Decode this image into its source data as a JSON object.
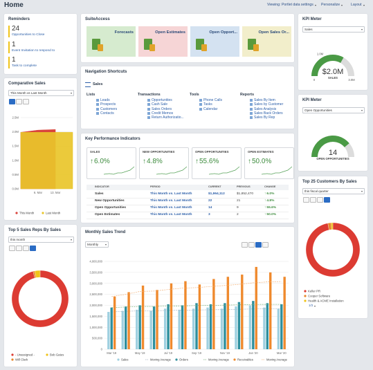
{
  "header": {
    "title": "Home",
    "links": [
      "Viewing: Portlet data settings",
      "Personalize",
      "Layout"
    ]
  },
  "reminders": {
    "title": "Reminders",
    "items": [
      {
        "count": 24,
        "label": "Opportunities to Close"
      },
      {
        "count": 1,
        "label": "Event Invitation to respond to"
      },
      {
        "count": 1,
        "label": "Task to complete"
      }
    ]
  },
  "comparative_sales": {
    "title": "Comparative Sales",
    "filter": "This Month vs Last Month",
    "chart_data": {
      "type": "area",
      "categories": [
        null,
        "6. Mar",
        "13. Mar",
        null
      ],
      "series": [
        {
          "name": "This Month",
          "color": "#d9453d",
          "values": [
            1.98,
            2.06,
            2.08,
            null
          ]
        },
        {
          "name": "Last Month",
          "color": "#e9c62a",
          "values": [
            1.98,
            1.98,
            1.98,
            1.98
          ]
        }
      ],
      "ylim": [
        0,
        2.5
      ],
      "yticks": [
        {
          "value": 0,
          "label": "0.0M"
        },
        {
          "value": 0.5,
          "label": "0.5M"
        },
        {
          "value": 1,
          "label": "1.0M"
        },
        {
          "value": 1.5,
          "label": "1.5M"
        },
        {
          "value": 2,
          "label": "2.0M"
        },
        {
          "value": 2.5,
          "label": "2.5M"
        }
      ],
      "grid": true
    }
  },
  "top_reps": {
    "title": "Top 5 Sales Reps By Sales",
    "filter": "this month",
    "chart_data": {
      "type": "donut",
      "categories": [
        "- Unassigned -",
        "Will Clark",
        "Bob Gates"
      ],
      "values": [
        96,
        1,
        3
      ],
      "colors": [
        "#dc3b32",
        "#e8872b",
        "#f0c419"
      ]
    }
  },
  "suite_access": {
    "title": "SuiteAccess",
    "tiles": [
      "Forecasts",
      "Open Estimates",
      "Open Opport...",
      "Open Sales Or..."
    ]
  },
  "navigation": {
    "title": "Navigation Shortcuts",
    "section": "Sales",
    "groups": [
      {
        "title": "Lists",
        "items": [
          "Leads",
          "Prospects",
          "Customers",
          "Contacts"
        ]
      },
      {
        "title": "Transactions",
        "items": [
          "Opportunities",
          "Cash Sale",
          "Sales Orders",
          "Credit Memos",
          "Return Authorizatio..."
        ]
      },
      {
        "title": "Tools",
        "items": [
          "Phone Calls",
          "Tasks",
          "Calendar"
        ]
      },
      {
        "title": "Reports",
        "items": [
          "Sales By Item",
          "Sales by Customer",
          "Sales Analysis",
          "Sales Back Orders",
          "Sales By Rep"
        ]
      }
    ]
  },
  "kpi": {
    "title": "Key Performance Indicators",
    "cards": [
      {
        "label": "SALES",
        "change": "6.0%"
      },
      {
        "label": "NEW OPPORTUNITIES",
        "change": "4.8%"
      },
      {
        "label": "OPEN OPPORTUNITIES",
        "change": "55.6%"
      },
      {
        "label": "OPEN ESTIMATES",
        "change": "50.0%"
      }
    ],
    "table": {
      "columns": [
        "INDICATOR",
        "PERIOD",
        "CURRENT",
        "PREVIOUS",
        "CHANGE"
      ],
      "rows": [
        [
          "Sales",
          "This Month vs. Last Month",
          "$1,964,112",
          "$1,852,470",
          "6.0%"
        ],
        [
          "New Opportunities",
          "This Month vs. Last Month",
          "22",
          "21",
          "4.8%"
        ],
        [
          "Open Opportunities",
          "This Month vs. Last Month",
          "14",
          "9",
          "55.6%"
        ],
        [
          "Open Estimates",
          "This Month vs. Last Month",
          "3",
          "2",
          "50.0%"
        ]
      ]
    }
  },
  "monthly_trend": {
    "title": "Monthly Sales Trend",
    "filter": "Monthly",
    "chart_data": {
      "type": "bar",
      "categories": [
        "Mar '19",
        null,
        "May '19",
        null,
        "Jul '19",
        null,
        "Sep '19",
        null,
        "Nov '19",
        null,
        "Jan '20",
        null,
        "Mar '20"
      ],
      "series": [
        {
          "name": "Sales",
          "color": "#9fd0e0",
          "values": [
            1700000,
            1750000,
            1800000,
            1750000,
            1850000,
            1800000,
            1850000,
            1900000,
            1850000,
            1950000,
            2000000,
            1900000,
            1850000
          ]
        },
        {
          "name": "Moving Average",
          "type": "line",
          "color": "#a9b6c6",
          "values": [
            1700000,
            1725000,
            1750000,
            1750000,
            1770000,
            1775000,
            1785000,
            1800000,
            1805000,
            1820000,
            1835000,
            1840000,
            1840000
          ]
        },
        {
          "name": "Orders",
          "color": "#2f8f9d",
          "values": [
            1900000,
            1950000,
            2000000,
            1950000,
            2050000,
            2000000,
            2100000,
            2050000,
            2100000,
            2150000,
            2200000,
            2100000,
            2050000
          ]
        },
        {
          "name": "Moving Average",
          "type": "line",
          "color": "#7fb27f",
          "values": [
            1900000,
            1925000,
            1950000,
            1950000,
            1970000,
            1975000,
            1990000,
            2000000,
            2010000,
            2025000,
            2040000,
            2045000,
            2045000
          ]
        },
        {
          "name": "Receivables",
          "color": "#ef8a2e",
          "values": [
            2400000,
            2600000,
            2900000,
            2700000,
            3000000,
            3100000,
            2950000,
            3200000,
            3300000,
            3400000,
            3750000,
            3500000,
            3300000
          ]
        },
        {
          "name": "Moving Average",
          "type": "line",
          "color": "#f2b27a",
          "values": [
            2400000,
            2500000,
            2633333,
            2650000,
            2720000,
            2783333,
            2807143,
            2856250,
            2905556,
            2955000,
            3027273,
            3066667,
            3084615
          ]
        }
      ],
      "ylim": [
        0,
        4000000
      ],
      "yticks": [
        0,
        {
          "value": 500000,
          "label": "500,000"
        },
        {
          "value": 1000000,
          "label": "1,000,000"
        },
        {
          "value": 1500000,
          "label": "1,500,000"
        },
        {
          "value": 2000000,
          "label": "2,000,000"
        },
        {
          "value": 2500000,
          "label": "2,500,000"
        },
        {
          "value": 3000000,
          "label": "3,000,000"
        },
        {
          "value": 3500000,
          "label": "3,500,000"
        },
        {
          "value": 4000000,
          "label": "4,000,000"
        }
      ],
      "grid": true
    }
  },
  "kpi_meter_sales": {
    "title": "KPI Meter",
    "filter": "Sales",
    "chart_data": {
      "type": "gauge",
      "value": 2.0,
      "value_label": "$2.0M",
      "label": "SALES",
      "color": "#4a9a45",
      "ylim": [
        0,
        3
      ],
      "yticks": [
        0,
        {
          "value": 1,
          "label": "1.0M"
        },
        {
          "value": 3,
          "label": "3.0M"
        }
      ]
    }
  },
  "kpi_meter_opps": {
    "title": "KPI Meter",
    "filter": "Open Opportunities",
    "chart_data": {
      "type": "gauge",
      "value": 14,
      "label": "OPEN OPPORTUNITIES",
      "color": "#4a9a45",
      "ylim": [
        0,
        18
      ]
    }
  },
  "top_customers": {
    "title": "Top 25 Customers By Sales",
    "filter": "this fiscal quarter",
    "pager": "1/3",
    "chart_data": {
      "type": "donut",
      "categories": [
        "Keller PR",
        "Cooper Software",
        "Health & ACME Installation"
      ],
      "values": [
        97,
        2,
        1
      ],
      "colors": [
        "#dc3b32",
        "#e8872b",
        "#f0c419"
      ]
    }
  }
}
